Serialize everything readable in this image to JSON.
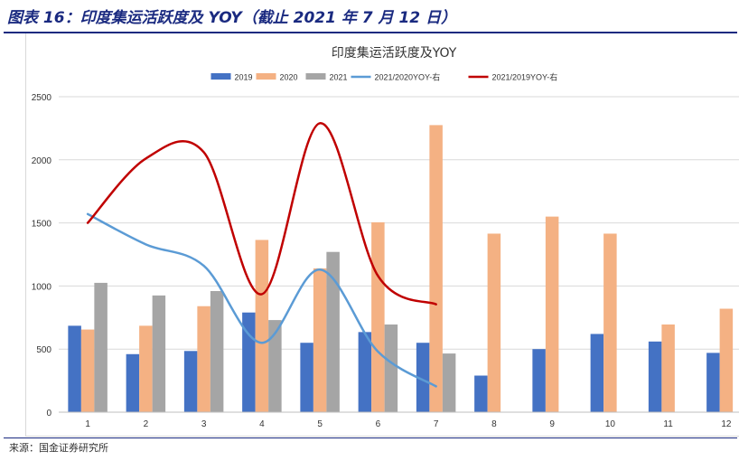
{
  "figure": {
    "title": "图表 16：印度集运活跃度及 YOY（截止 2021 年 7 月 12 日）",
    "source": "来源：国金证券研究所"
  },
  "colors": {
    "y2019": "#4472c4",
    "y2020": "#f4b183",
    "y2021": "#a5a5a5",
    "yoy2020": "#5b9bd5",
    "yoy2019": "#c00000",
    "title_blue": "#1a2a80"
  },
  "chart_data": {
    "type": "bar",
    "title": "印度集运活跃度及YOY",
    "categories": [
      "1",
      "2",
      "3",
      "4",
      "5",
      "6",
      "7",
      "8",
      "9",
      "10",
      "11",
      "12"
    ],
    "ylim": [
      0,
      2500
    ],
    "yticks": [
      "0",
      "500",
      "1000",
      "1500",
      "2000",
      "2500"
    ],
    "grid": true,
    "legend_position": "top",
    "series": [
      {
        "name": "2019",
        "kind": "bar",
        "color": "#4472c4",
        "values": [
          685,
          460,
          485,
          790,
          550,
          635,
          550,
          290,
          500,
          620,
          560,
          470
        ]
      },
      {
        "name": "2020",
        "kind": "bar",
        "color": "#f4b183",
        "values": [
          655,
          685,
          840,
          1365,
          1140,
          1505,
          2275,
          1415,
          1550,
          1415,
          695,
          820
        ]
      },
      {
        "name": "2021",
        "kind": "bar",
        "color": "#a5a5a5",
        "values": [
          1025,
          925,
          960,
          730,
          1270,
          695,
          465,
          null,
          null,
          null,
          null,
          null
        ]
      },
      {
        "name": "2021/2020YOY-右",
        "kind": "line",
        "color": "#5b9bd5",
        "values": [
          1570,
          1330,
          1160,
          550,
          1130,
          480,
          205,
          null,
          null,
          null,
          null,
          null
        ]
      },
      {
        "name": "2021/2019YOY-右",
        "kind": "line",
        "color": "#c00000",
        "values": [
          1500,
          2010,
          2060,
          935,
          2290,
          1080,
          855,
          null,
          null,
          null,
          null,
          null
        ]
      }
    ]
  }
}
